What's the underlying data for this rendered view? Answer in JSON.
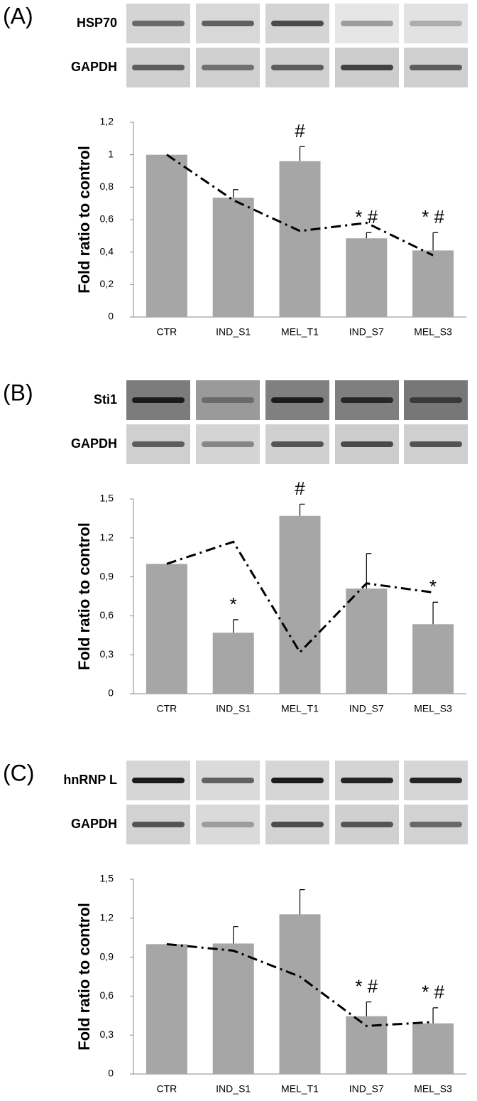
{
  "chart_data": [
    {
      "type": "bar",
      "panel": "(A)",
      "blots": [
        "HSP70",
        "GAPDH"
      ],
      "y_label": "Fold ratio to control",
      "categories": [
        "CTR",
        "IND_S1",
        "MEL_T1",
        "IND_S7",
        "MEL_S3"
      ],
      "values": [
        1.0,
        0.735,
        0.96,
        0.485,
        0.41
      ],
      "errors": [
        null,
        0.05,
        0.09,
        0.035,
        0.11
      ],
      "line_values": [
        1.0,
        0.72,
        0.53,
        0.58,
        0.38
      ],
      "annotations": [
        null,
        null,
        "#",
        "* #",
        "* #"
      ],
      "color": "#a6a6a6",
      "line_color": "#000000",
      "ylim": [
        0,
        1.2
      ],
      "yticks": [
        0,
        {
          "value": 0.2,
          "label": "0,2"
        },
        {
          "value": 0.4,
          "label": "0,4"
        },
        {
          "value": 0.6,
          "label": "0,6"
        },
        {
          "value": 0.8,
          "label": "0,8"
        },
        1,
        {
          "value": 1.2,
          "label": "1,2"
        }
      ]
    },
    {
      "type": "bar",
      "panel": "(B)",
      "blots": [
        "Sti1",
        "GAPDH"
      ],
      "y_label": "Fold ratio to control",
      "categories": [
        "CTR",
        "IND_S1",
        "MEL_T1",
        "IND_S7",
        "MEL_S3"
      ],
      "values": [
        1.0,
        0.47,
        1.37,
        0.81,
        0.535
      ],
      "errors": [
        null,
        0.1,
        0.09,
        0.27,
        0.17
      ],
      "line_values": [
        1.0,
        1.17,
        0.32,
        0.85,
        0.78
      ],
      "annotations": [
        null,
        "*",
        "#",
        null,
        "*"
      ],
      "color": "#a6a6a6",
      "line_color": "#000000",
      "ylim": [
        0,
        1.5
      ],
      "yticks": [
        0,
        {
          "value": 0.3,
          "label": "0,3"
        },
        {
          "value": 0.6,
          "label": "0,6"
        },
        {
          "value": 0.9,
          "label": "0,9"
        },
        {
          "value": 1.2,
          "label": "1,2"
        },
        {
          "value": 1.5,
          "label": "1,5"
        }
      ]
    },
    {
      "type": "bar",
      "panel": "(C)",
      "blots": [
        "hnRNP L",
        "GAPDH"
      ],
      "y_label": "Fold ratio to control",
      "categories": [
        "CTR",
        "IND_S1",
        "MEL_T1",
        "IND_S7",
        "MEL_S3"
      ],
      "values": [
        1.0,
        1.005,
        1.23,
        0.445,
        0.39
      ],
      "errors": [
        null,
        0.13,
        0.19,
        0.11,
        0.12
      ],
      "line_values": [
        1.0,
        0.95,
        0.75,
        0.37,
        0.4
      ],
      "annotations": [
        null,
        null,
        null,
        "* #",
        "* #"
      ],
      "color": "#a6a6a6",
      "line_color": "#000000",
      "ylim": [
        0,
        1.5
      ],
      "yticks": [
        0,
        {
          "value": 0.3,
          "label": "0,3"
        },
        {
          "value": 0.6,
          "label": "0,6"
        },
        {
          "value": 0.9,
          "label": "0,9"
        },
        {
          "value": 1.2,
          "label": "1,2"
        },
        {
          "value": 1.5,
          "label": "1,5"
        }
      ]
    }
  ]
}
